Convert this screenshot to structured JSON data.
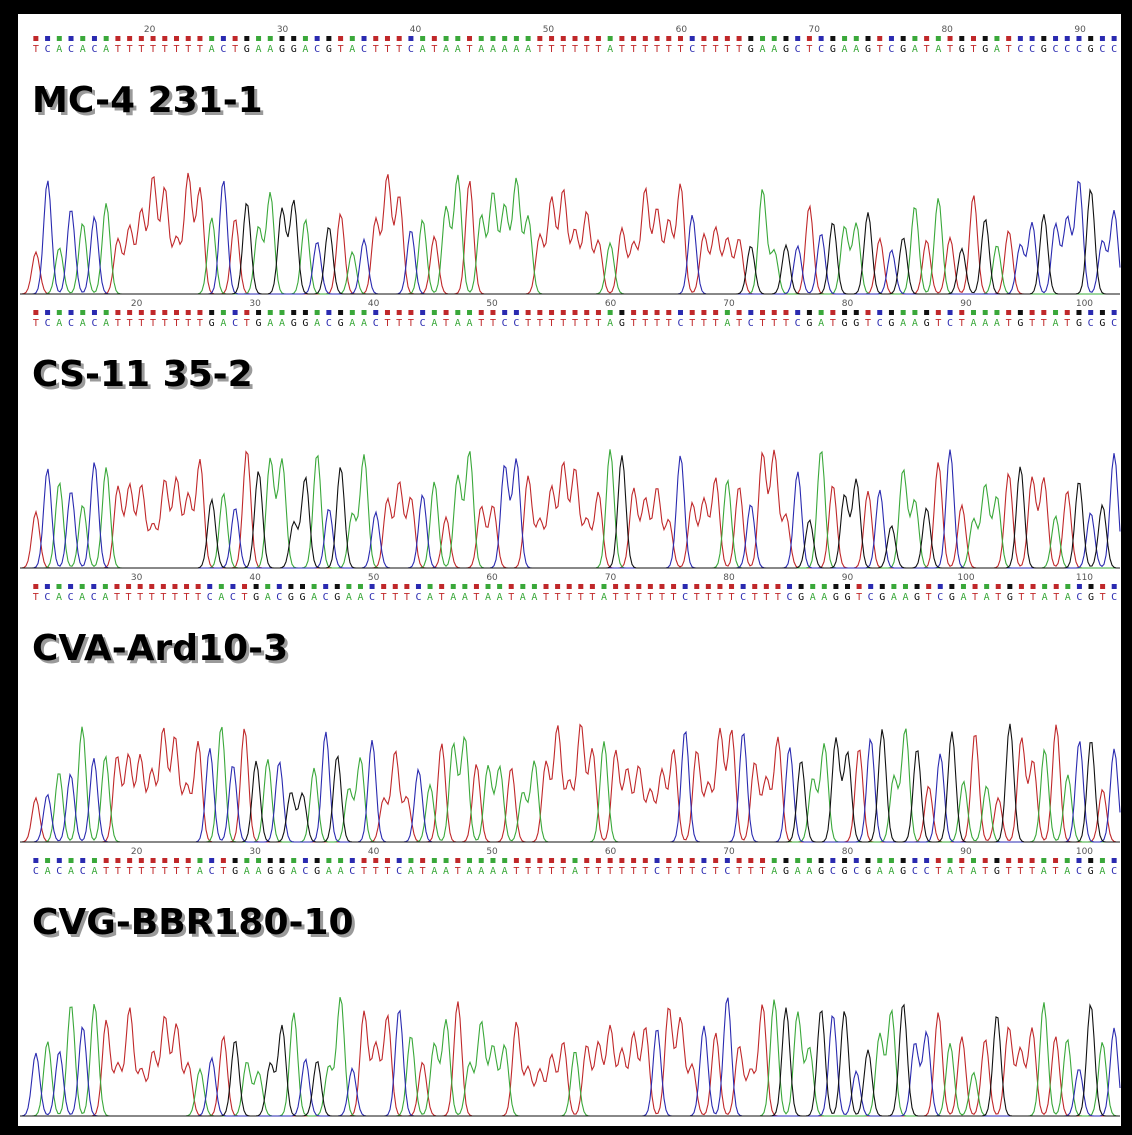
{
  "panels": [
    {
      "label": "MC-4 231-1",
      "ticks": [
        "20",
        "30",
        "40",
        "50",
        "60",
        "70",
        "80",
        "90"
      ],
      "sequence": "TCACACATTTTTTTTACTGAAGGACGTACTTTCATAATAAAAATTTTTTATTTTTTCTTTTGAAGCTCGAAGTCGATATGTGATCCGCCCGCC"
    },
    {
      "label": "CS-11 35-2",
      "ticks": [
        "20",
        "30",
        "40",
        "50",
        "60",
        "70",
        "80",
        "90",
        "100"
      ],
      "sequence": "TCACACATTTTTTTTGACTGAAGGACGAACTTTCATAATTCCTTTTTTTAGTTTTCTTTATCTTTCGATGGTCGAAGTCTAAATGTTATGCGC"
    },
    {
      "label": "CVA-Ard10-3",
      "ticks": [
        "30",
        "40",
        "50",
        "60",
        "70",
        "80",
        "90",
        "100",
        "110"
      ],
      "sequence": "TCACACATTTTTTTTCACTGACGGACGAACTTTCATAATAATAATTTTTATTTTTTCTTTTCTTTCGAAGGTCGAAGTCGATATGTTATACGTC"
    },
    {
      "label": "CVG-BBR180-10",
      "ticks": [
        "20",
        "30",
        "40",
        "50",
        "60",
        "70",
        "80",
        "90",
        "100"
      ],
      "sequence": "CACACATTTTTTTTACTGAAGGACGAACTTTCATAATAAAATTTTTATTTTTTCTTTCTCTTTAGAAGCGCGAAGCCTATATGTTTATACGAC"
    }
  ]
}
